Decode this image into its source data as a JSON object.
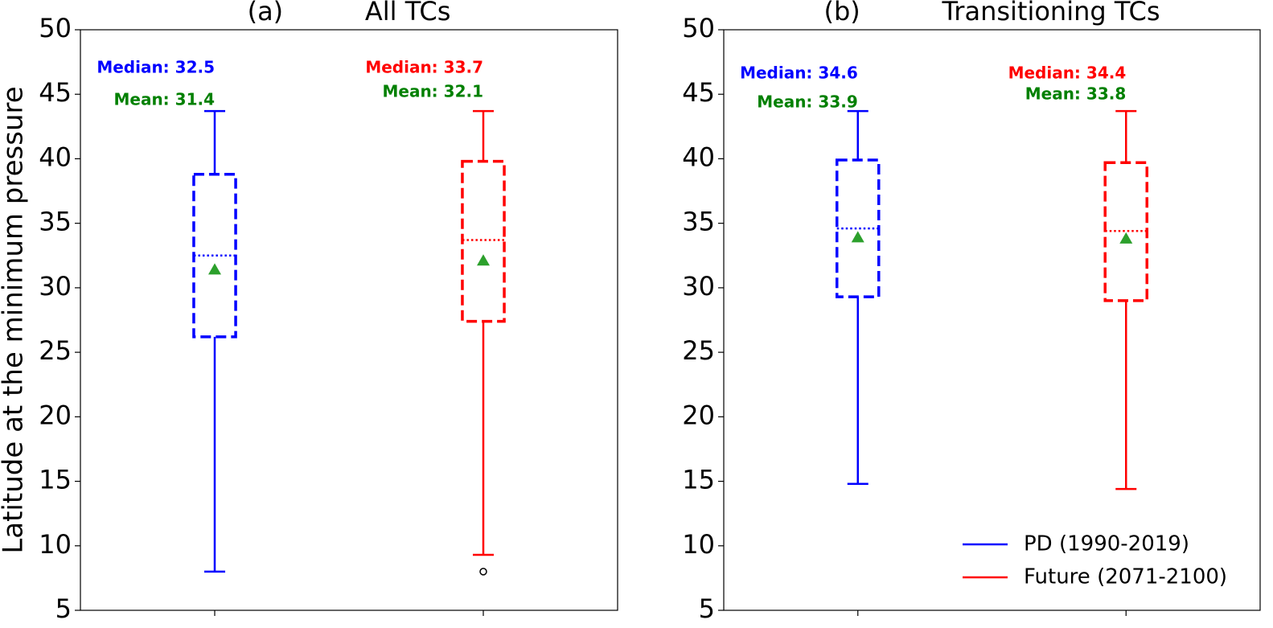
{
  "chart_data": [
    {
      "type": "box",
      "title": "(a)          All TCs",
      "ylabel": "Latitude at the minimum pressure",
      "xlim": [
        0.5,
        2.5
      ],
      "xticks": [
        1,
        2
      ],
      "ylim": [
        5,
        50
      ],
      "yticks": [
        5,
        10,
        15,
        20,
        25,
        30,
        35,
        40,
        45,
        50
      ],
      "median_color": "#0000ff",
      "mean_color": "#2ca02c",
      "mean_label_color": "#008000",
      "series": [
        {
          "color": "#0000ff",
          "whislo": 8.0,
          "q1": 26.2,
          "median": 32.5,
          "q3": 38.8,
          "whishi": 43.7,
          "mean": 31.4,
          "fliers": [],
          "median_label": "Median: 32.5",
          "mean_label": "Mean: 31.4"
        },
        {
          "color": "#ff0000",
          "whislo": 9.3,
          "q1": 27.4,
          "median": 33.7,
          "q3": 39.8,
          "whishi": 43.7,
          "mean": 32.1,
          "fliers": [
            8.0
          ],
          "median_label": "Median: 33.7",
          "mean_label": "Mean: 32.1"
        }
      ]
    },
    {
      "type": "box",
      "title": "(b)          Transitioning TCs",
      "xlim": [
        0.5,
        2.5
      ],
      "xticks": [
        1,
        2
      ],
      "ylim": [
        5,
        50
      ],
      "yticks": [
        5,
        10,
        15,
        20,
        25,
        30,
        35,
        40,
        45,
        50
      ],
      "legend": "lower right",
      "mean_color": "#2ca02c",
      "mean_label_color": "#008000",
      "series": [
        {
          "name": "PD (1990-2019)",
          "color": "#0000ff",
          "whislo": 14.8,
          "q1": 29.3,
          "median": 34.6,
          "q3": 39.9,
          "whishi": 43.7,
          "mean": 33.9,
          "fliers": [],
          "median_label": "Median: 34.6",
          "mean_label": "Mean: 33.9"
        },
        {
          "name": "Future (2071-2100)",
          "color": "#ff0000",
          "whislo": 14.4,
          "q1": 29.0,
          "median": 34.4,
          "q3": 39.7,
          "whishi": 43.7,
          "mean": 33.8,
          "fliers": [],
          "median_label": "Median: 34.4",
          "mean_label": "Mean: 33.8"
        }
      ]
    }
  ]
}
